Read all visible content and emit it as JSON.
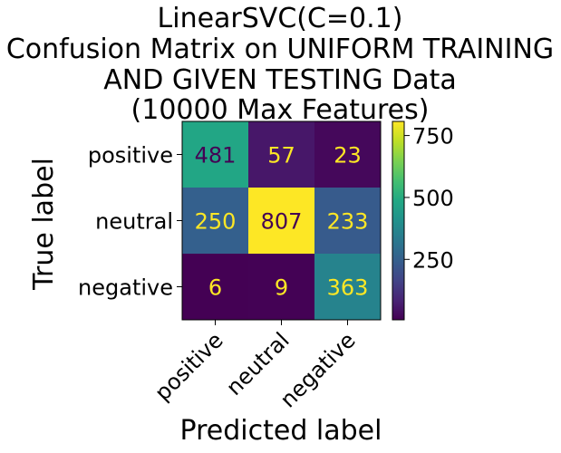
{
  "chart_data": {
    "type": "heatmap",
    "title_lines": [
      "LinearSVC(C=0.1)",
      "Confusion Matrix on UNIFORM TRAINING",
      "AND GIVEN TESTING Data",
      "(10000 Max Features)"
    ],
    "xlabel": "Predicted label",
    "ylabel": "True label",
    "x_categories": [
      "positive",
      "neutral",
      "negative"
    ],
    "y_categories": [
      "positive",
      "neutral",
      "negative"
    ],
    "values": [
      [
        481,
        57,
        23
      ],
      [
        250,
        807,
        233
      ],
      [
        6,
        9,
        363
      ]
    ],
    "colormap": "viridis",
    "value_range": [
      6,
      807
    ],
    "colorbar_ticks": [
      250,
      500,
      750
    ],
    "colorbar_tick_labels": [
      "250",
      "500",
      "750"
    ],
    "text_color_dark_cells": "#fde725",
    "text_color_light_cells": "#440154"
  }
}
